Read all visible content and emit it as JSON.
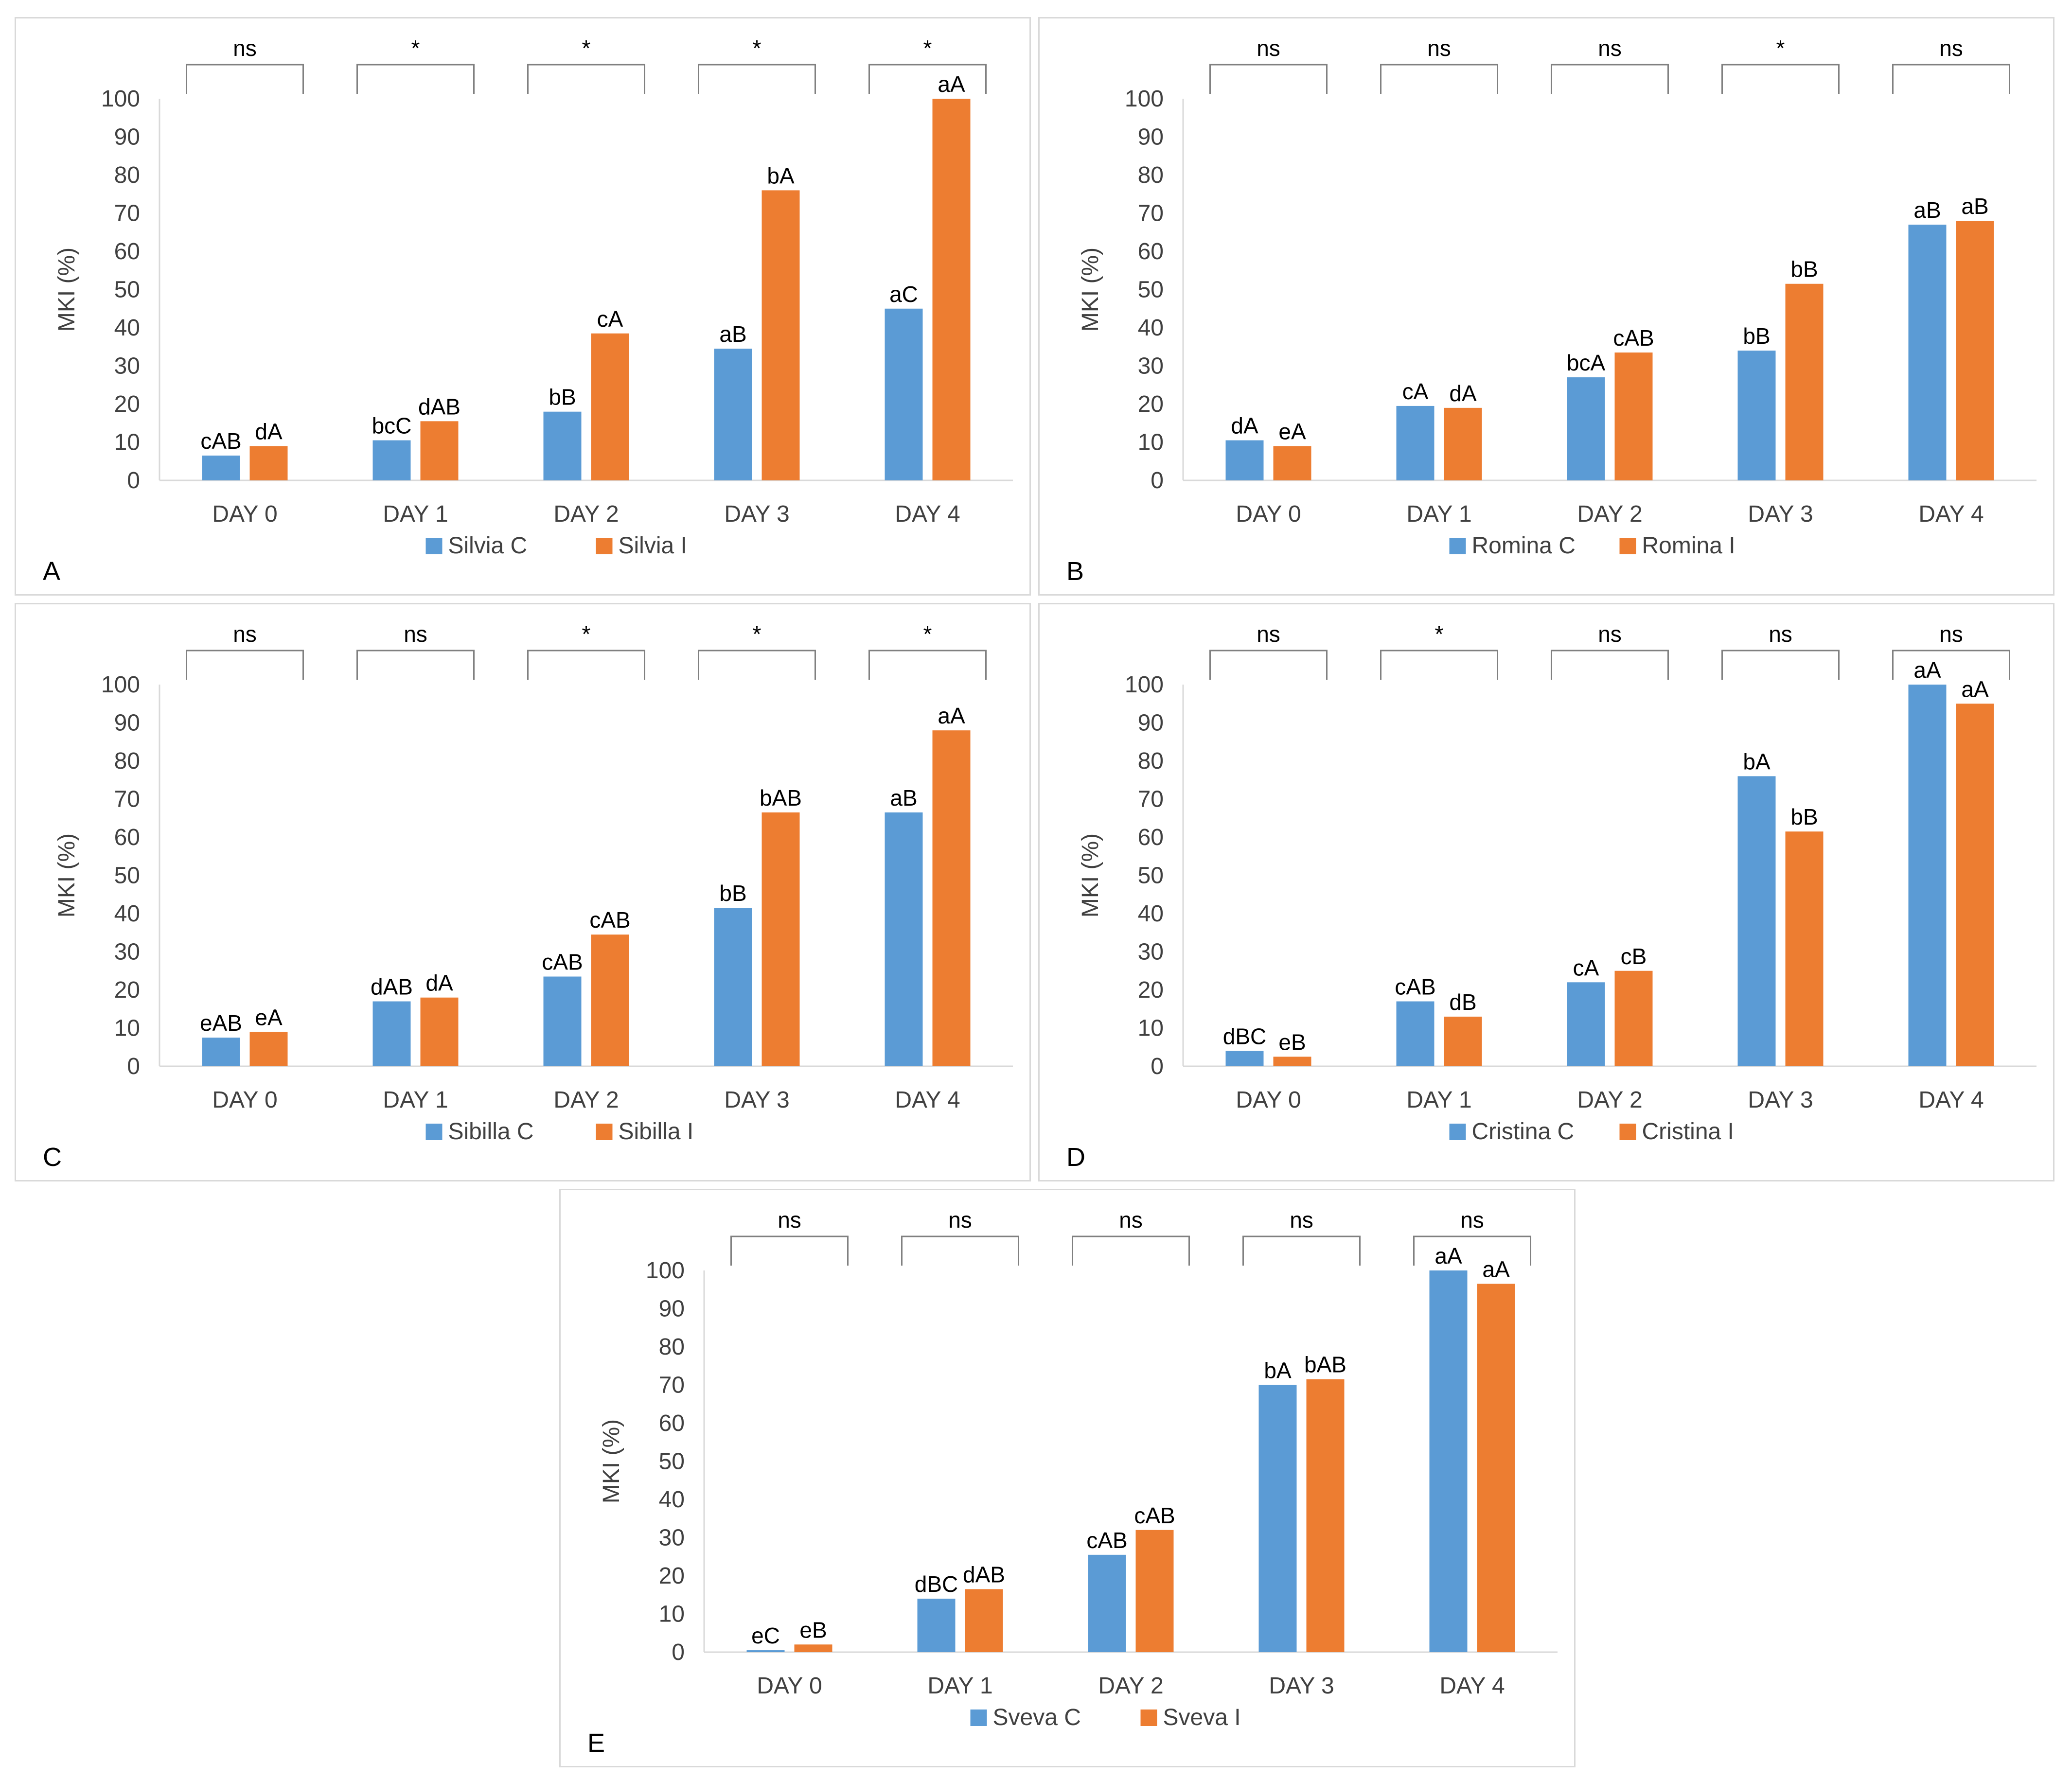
{
  "colors": {
    "control": "#5b9bd5",
    "treated": "#ed7d31",
    "axis": "#d9d9d9",
    "text": "#404040"
  },
  "chart_data": [
    {
      "panel": "A",
      "type": "bar",
      "ylabel": "MKI (%)",
      "ylim": [
        0,
        100
      ],
      "yticks": [
        0,
        10,
        20,
        30,
        40,
        50,
        60,
        70,
        80,
        90,
        100
      ],
      "categories": [
        "DAY 0",
        "DAY 1",
        "DAY 2",
        "DAY 3",
        "DAY 4"
      ],
      "series": [
        {
          "name": "Silvia C",
          "values": [
            6.5,
            10.5,
            18,
            34.5,
            45
          ],
          "labels": [
            "cAB",
            "bcC",
            "bB",
            "aB",
            "aC"
          ]
        },
        {
          "name": "Silvia I",
          "values": [
            9,
            15.5,
            38.5,
            76,
            100
          ],
          "labels": [
            "dA",
            "dAB",
            "cA",
            "bA",
            "aA"
          ]
        }
      ],
      "significance": [
        "ns",
        "*",
        "*",
        "*",
        "*"
      ]
    },
    {
      "panel": "B",
      "type": "bar",
      "ylabel": "MKI (%)",
      "ylim": [
        0,
        100
      ],
      "yticks": [
        0,
        10,
        20,
        30,
        40,
        50,
        60,
        70,
        80,
        90,
        100
      ],
      "categories": [
        "DAY 0",
        "DAY 1",
        "DAY 2",
        "DAY 3",
        "DAY 4"
      ],
      "series": [
        {
          "name": "Romina C",
          "values": [
            10.5,
            19.5,
            27,
            34,
            67
          ],
          "labels": [
            "dA",
            "cA",
            "bcA",
            "bB",
            "aB"
          ]
        },
        {
          "name": "Romina I",
          "values": [
            9,
            19,
            33.5,
            51.5,
            68
          ],
          "labels": [
            "eA",
            "dA",
            "cAB",
            "bB",
            "aB"
          ]
        }
      ],
      "significance": [
        "ns",
        "ns",
        "ns",
        "*",
        "ns"
      ]
    },
    {
      "panel": "C",
      "type": "bar",
      "ylabel": "MKI (%)",
      "ylim": [
        0,
        100
      ],
      "yticks": [
        0,
        10,
        20,
        30,
        40,
        50,
        60,
        70,
        80,
        90,
        100
      ],
      "categories": [
        "DAY 0",
        "DAY 1",
        "DAY 2",
        "DAY 3",
        "DAY 4"
      ],
      "series": [
        {
          "name": "Sibilla C",
          "values": [
            7.5,
            17,
            23.5,
            41.5,
            66.5
          ],
          "labels": [
            "eAB",
            "dAB",
            "cAB",
            "bB",
            "aB"
          ]
        },
        {
          "name": "Sibilla I",
          "values": [
            9,
            18,
            34.5,
            66.5,
            88
          ],
          "labels": [
            "eA",
            "dA",
            "cAB",
            "bAB",
            "aA"
          ]
        }
      ],
      "significance": [
        "ns",
        "ns",
        "*",
        "*",
        "*"
      ]
    },
    {
      "panel": "D",
      "type": "bar",
      "ylabel": "MKI (%)",
      "ylim": [
        0,
        100
      ],
      "yticks": [
        0,
        10,
        20,
        30,
        40,
        50,
        60,
        70,
        80,
        90,
        100
      ],
      "categories": [
        "DAY 0",
        "DAY 1",
        "DAY 2",
        "DAY 3",
        "DAY 4"
      ],
      "series": [
        {
          "name": "Cristina C",
          "values": [
            4,
            17,
            22,
            76,
            100
          ],
          "labels": [
            "dBC",
            "cAB",
            "cA",
            "bA",
            "aA"
          ]
        },
        {
          "name": "Cristina I",
          "values": [
            2.5,
            13,
            25,
            61.5,
            95
          ],
          "labels": [
            "eB",
            "dB",
            "cB",
            "bB",
            "aA"
          ]
        }
      ],
      "significance": [
        "ns",
        "*",
        "ns",
        "ns",
        "ns"
      ]
    },
    {
      "panel": "E",
      "type": "bar",
      "ylabel": "MKI (%)",
      "ylim": [
        0,
        100
      ],
      "yticks": [
        0,
        10,
        20,
        30,
        40,
        50,
        60,
        70,
        80,
        90,
        100
      ],
      "categories": [
        "DAY 0",
        "DAY 1",
        "DAY 2",
        "DAY 3",
        "DAY 4"
      ],
      "series": [
        {
          "name": "Sveva C",
          "values": [
            0.5,
            14,
            25.5,
            70,
            100
          ],
          "labels": [
            "eC",
            "dBC",
            "cAB",
            "bA",
            "aA"
          ]
        },
        {
          "name": "Sveva I",
          "values": [
            2,
            16.5,
            32,
            71.5,
            96.5
          ],
          "labels": [
            "eB",
            "dAB",
            "cAB",
            "bAB",
            "aA"
          ]
        }
      ],
      "significance": [
        "ns",
        "ns",
        "ns",
        "ns",
        "ns"
      ]
    }
  ]
}
